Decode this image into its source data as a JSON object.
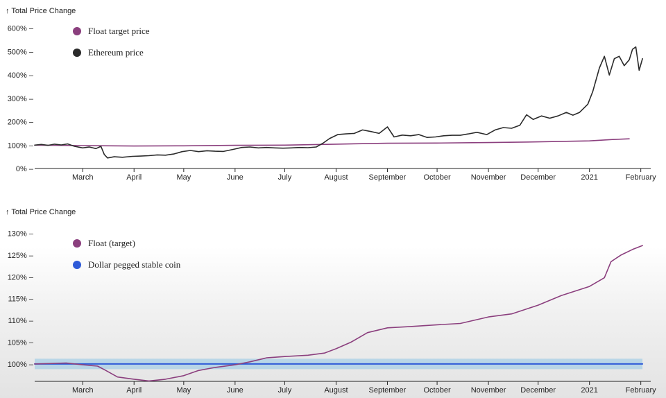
{
  "chart_data": [
    {
      "type": "line",
      "axis_title": "↑ Total Price Change",
      "y_ticks": [
        "600% –",
        "500% –",
        "400% –",
        "300% –",
        "200% –",
        "100% –",
        "0% –"
      ],
      "y_tick_values": [
        600,
        500,
        400,
        300,
        200,
        100,
        0
      ],
      "ylim": [
        0,
        620
      ],
      "x_ticks": [
        "March",
        "April",
        "May",
        "June",
        "July",
        "August",
        "September",
        "October",
        "November",
        "December",
        "2021",
        "February"
      ],
      "x_tick_dates": [
        "2020-03-01",
        "2020-04-01",
        "2020-05-01",
        "2020-06-01",
        "2020-07-01",
        "2020-08-01",
        "2020-09-01",
        "2020-10-01",
        "2020-11-01",
        "2020-12-01",
        "2021-01-01",
        "2021-02-01"
      ],
      "xlim": [
        "2020-02-01",
        "2021-02-07"
      ],
      "legend": [
        {
          "label": "Float target price",
          "color": "#8b3f7e"
        },
        {
          "label": "Ethereum price",
          "color": "#2b2b2b"
        }
      ],
      "series": [
        {
          "name": "Float target price",
          "color": "#8b3f7e",
          "points": [
            [
              "2020-02-01",
              100
            ],
            [
              "2020-03-01",
              98
            ],
            [
              "2020-04-01",
              96
            ],
            [
              "2020-05-01",
              97
            ],
            [
              "2020-06-01",
              99
            ],
            [
              "2020-07-01",
              100
            ],
            [
              "2020-08-01",
              104
            ],
            [
              "2020-09-01",
              108
            ],
            [
              "2020-10-01",
              109
            ],
            [
              "2020-11-01",
              111
            ],
            [
              "2020-12-01",
              114
            ],
            [
              "2021-01-01",
              118
            ],
            [
              "2021-01-15",
              124
            ],
            [
              "2021-01-25",
              127
            ]
          ]
        },
        {
          "name": "Ethereum price",
          "color": "#2b2b2b",
          "points": [
            [
              "2020-02-01",
              100
            ],
            [
              "2020-02-05",
              103
            ],
            [
              "2020-02-09",
              99
            ],
            [
              "2020-02-13",
              104
            ],
            [
              "2020-02-17",
              101
            ],
            [
              "2020-02-21",
              105
            ],
            [
              "2020-02-25",
              95
            ],
            [
              "2020-03-01",
              88
            ],
            [
              "2020-03-05",
              92
            ],
            [
              "2020-03-09",
              85
            ],
            [
              "2020-03-12",
              95
            ],
            [
              "2020-03-14",
              60
            ],
            [
              "2020-03-16",
              45
            ],
            [
              "2020-03-20",
              50
            ],
            [
              "2020-03-25",
              48
            ],
            [
              "2020-03-31",
              52
            ],
            [
              "2020-04-05",
              53
            ],
            [
              "2020-04-10",
              55
            ],
            [
              "2020-04-15",
              58
            ],
            [
              "2020-04-20",
              57
            ],
            [
              "2020-04-25",
              62
            ],
            [
              "2020-04-30",
              72
            ],
            [
              "2020-05-05",
              77
            ],
            [
              "2020-05-10",
              72
            ],
            [
              "2020-05-15",
              76
            ],
            [
              "2020-05-20",
              74
            ],
            [
              "2020-05-25",
              73
            ],
            [
              "2020-05-31",
              82
            ],
            [
              "2020-06-05",
              90
            ],
            [
              "2020-06-10",
              92
            ],
            [
              "2020-06-15",
              88
            ],
            [
              "2020-06-20",
              90
            ],
            [
              "2020-06-25",
              88
            ],
            [
              "2020-06-30",
              87
            ],
            [
              "2020-07-05",
              88
            ],
            [
              "2020-07-10",
              90
            ],
            [
              "2020-07-15",
              89
            ],
            [
              "2020-07-20",
              92
            ],
            [
              "2020-07-24",
              108
            ],
            [
              "2020-07-28",
              128
            ],
            [
              "2020-08-02",
              145
            ],
            [
              "2020-08-07",
              148
            ],
            [
              "2020-08-12",
              150
            ],
            [
              "2020-08-17",
              165
            ],
            [
              "2020-08-22",
              158
            ],
            [
              "2020-08-27",
              150
            ],
            [
              "2020-09-01",
              178
            ],
            [
              "2020-09-05",
              135
            ],
            [
              "2020-09-10",
              143
            ],
            [
              "2020-09-15",
              140
            ],
            [
              "2020-09-20",
              145
            ],
            [
              "2020-09-25",
              133
            ],
            [
              "2020-09-30",
              135
            ],
            [
              "2020-10-05",
              140
            ],
            [
              "2020-10-10",
              142
            ],
            [
              "2020-10-15",
              142
            ],
            [
              "2020-10-20",
              148
            ],
            [
              "2020-10-25",
              155
            ],
            [
              "2020-10-31",
              145
            ],
            [
              "2020-11-05",
              165
            ],
            [
              "2020-11-10",
              175
            ],
            [
              "2020-11-15",
              172
            ],
            [
              "2020-11-20",
              185
            ],
            [
              "2020-11-24",
              230
            ],
            [
              "2020-11-28",
              210
            ],
            [
              "2020-12-03",
              225
            ],
            [
              "2020-12-08",
              215
            ],
            [
              "2020-12-13",
              225
            ],
            [
              "2020-12-18",
              240
            ],
            [
              "2020-12-22",
              228
            ],
            [
              "2020-12-26",
              240
            ],
            [
              "2020-12-31",
              275
            ],
            [
              "2021-01-03",
              330
            ],
            [
              "2021-01-07",
              430
            ],
            [
              "2021-01-10",
              480
            ],
            [
              "2021-01-13",
              400
            ],
            [
              "2021-01-16",
              470
            ],
            [
              "2021-01-19",
              480
            ],
            [
              "2021-01-22",
              440
            ],
            [
              "2021-01-25",
              465
            ],
            [
              "2021-01-27",
              510
            ],
            [
              "2021-01-29",
              520
            ],
            [
              "2021-01-31",
              420
            ],
            [
              "2021-02-02",
              470
            ]
          ]
        }
      ]
    },
    {
      "type": "line",
      "axis_title": "↑ Total Price Change",
      "y_ticks": [
        "130% –",
        "125% –",
        "120% –",
        "115% –",
        "110% –",
        "105% –",
        "100% –"
      ],
      "y_tick_values": [
        130,
        125,
        120,
        115,
        110,
        105,
        100
      ],
      "ylim": [
        96,
        132
      ],
      "x_ticks": [
        "March",
        "April",
        "May",
        "June",
        "July",
        "August",
        "September",
        "October",
        "November",
        "December",
        "2021",
        "February"
      ],
      "x_tick_dates": [
        "2020-03-01",
        "2020-04-01",
        "2020-05-01",
        "2020-06-01",
        "2020-07-01",
        "2020-08-01",
        "2020-09-01",
        "2020-10-01",
        "2020-11-01",
        "2020-12-01",
        "2021-01-01",
        "2021-02-01"
      ],
      "xlim": [
        "2020-02-01",
        "2021-02-07"
      ],
      "band": {
        "low": 98.8,
        "high": 101.2,
        "color": "#a8cfe6"
      },
      "legend": [
        {
          "label": "Float (target)",
          "color": "#8b3f7e"
        },
        {
          "label": "Dollar pegged stable coin",
          "color": "#2f5bd8"
        }
      ],
      "series": [
        {
          "name": "Dollar pegged stable coin",
          "color": "#2f5bd8",
          "points": [
            [
              "2020-02-01",
              100
            ],
            [
              "2021-02-02",
              100
            ]
          ]
        },
        {
          "name": "Float (target)",
          "color": "#8b3f7e",
          "points": [
            [
              "2020-02-01",
              100
            ],
            [
              "2020-02-10",
              100.1
            ],
            [
              "2020-02-20",
              100.2
            ],
            [
              "2020-03-01",
              99.8
            ],
            [
              "2020-03-10",
              99.5
            ],
            [
              "2020-03-15",
              98.5
            ],
            [
              "2020-03-22",
              97.0
            ],
            [
              "2020-04-01",
              96.5
            ],
            [
              "2020-04-10",
              96.1
            ],
            [
              "2020-04-20",
              96.5
            ],
            [
              "2020-05-01",
              97.3
            ],
            [
              "2020-05-10",
              98.5
            ],
            [
              "2020-05-20",
              99.2
            ],
            [
              "2020-06-01",
              99.8
            ],
            [
              "2020-06-10",
              100.5
            ],
            [
              "2020-06-20",
              101.4
            ],
            [
              "2020-07-01",
              101.7
            ],
            [
              "2020-07-15",
              102.0
            ],
            [
              "2020-07-25",
              102.5
            ],
            [
              "2020-08-01",
              103.5
            ],
            [
              "2020-08-10",
              105.0
            ],
            [
              "2020-08-20",
              107.2
            ],
            [
              "2020-09-01",
              108.3
            ],
            [
              "2020-09-15",
              108.6
            ],
            [
              "2020-10-01",
              109.0
            ],
            [
              "2020-10-15",
              109.3
            ],
            [
              "2020-11-01",
              110.8
            ],
            [
              "2020-11-15",
              111.5
            ],
            [
              "2020-12-01",
              113.5
            ],
            [
              "2020-12-15",
              115.7
            ],
            [
              "2021-01-01",
              117.8
            ],
            [
              "2021-01-10",
              119.8
            ],
            [
              "2021-01-14",
              123.5
            ],
            [
              "2021-01-20",
              125.0
            ],
            [
              "2021-01-27",
              126.3
            ],
            [
              "2021-02-02",
              127.2
            ]
          ]
        }
      ]
    }
  ]
}
